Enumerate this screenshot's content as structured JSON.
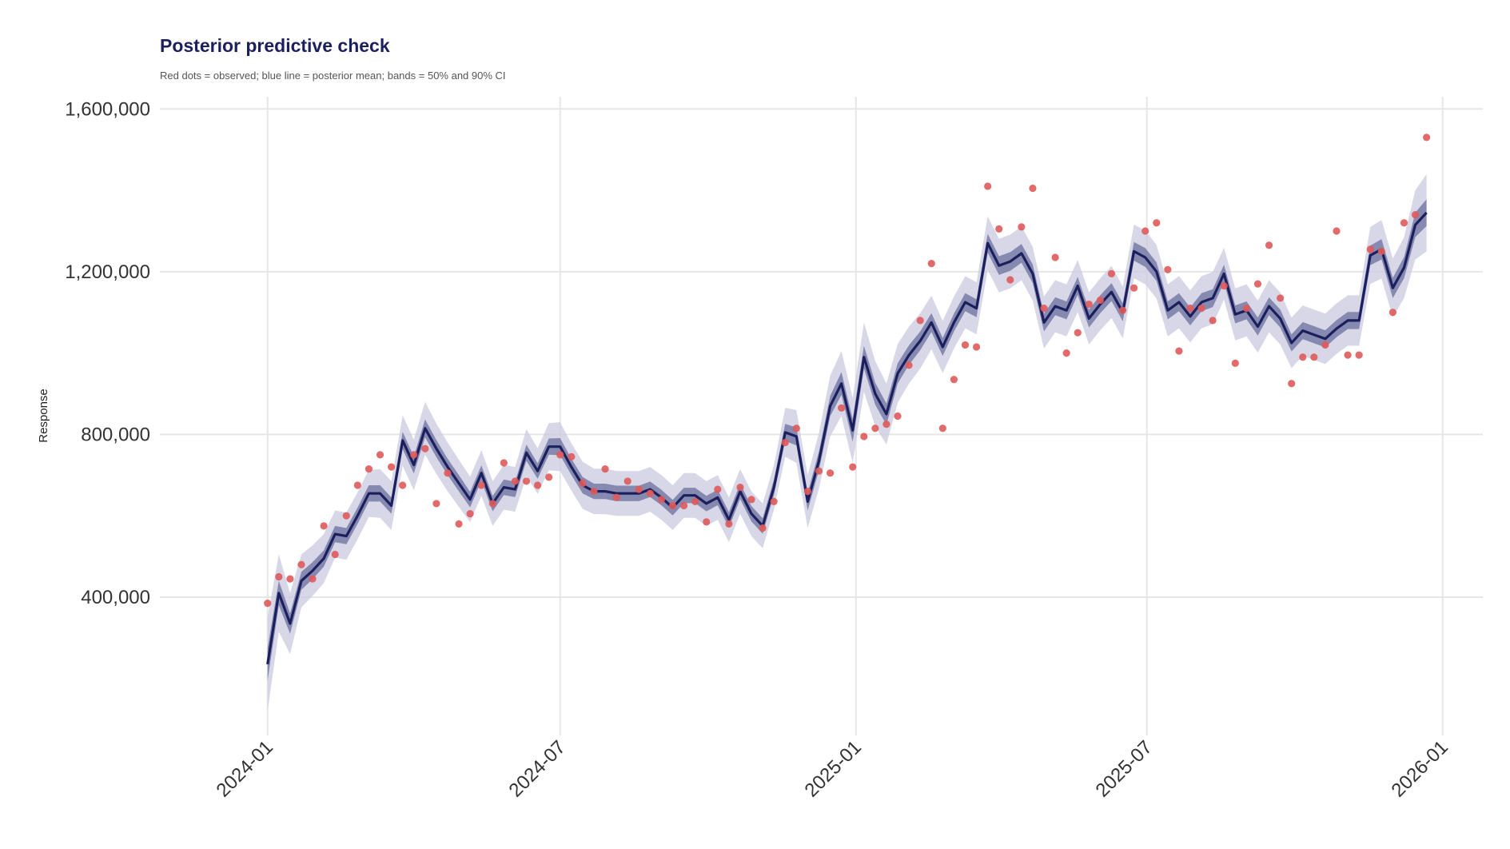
{
  "chart_data": {
    "type": "line",
    "title": "Posterior predictive check",
    "subtitle": "Red dots = observed; blue line = posterior mean; bands = 50% and 90% CI",
    "xlabel": "",
    "ylabel": "Response",
    "ylim": [
      60000,
      1630000
    ],
    "yticks": [
      400000,
      800000,
      1200000,
      1600000
    ],
    "ytick_labels": [
      "400,000",
      "800,000",
      "1,200,000",
      "1,600,000"
    ],
    "xticks": [
      "2024-01-01",
      "2024-07-01",
      "2025-01-01",
      "2025-07-01",
      "2026-01-01"
    ],
    "xtick_labels": [
      "2024-01",
      "2024-07",
      "2025-01",
      "2025-07",
      "2026-01"
    ],
    "xlim": [
      "2023-10-26",
      "2026-01-26"
    ],
    "grid": true,
    "colors": {
      "observed": "#e05a5a",
      "mean": "#1c1f5e",
      "band50": "#6b6f9e",
      "band90": "#c9cadf",
      "grid": "#e6e6e6"
    },
    "x_start": "2024-01-01",
    "x_step_days": 7,
    "series": [
      {
        "name": "posterior mean",
        "values": [
          235000,
          410000,
          335000,
          440000,
          465000,
          495000,
          555000,
          550000,
          600000,
          655000,
          655000,
          625000,
          785000,
          725000,
          815000,
          765000,
          720000,
          680000,
          640000,
          705000,
          630000,
          670000,
          665000,
          755000,
          710000,
          770000,
          770000,
          720000,
          675000,
          660000,
          660000,
          655000,
          655000,
          655000,
          665000,
          645000,
          620000,
          650000,
          650000,
          630000,
          645000,
          590000,
          660000,
          605000,
          575000,
          670000,
          805000,
          795000,
          635000,
          735000,
          870000,
          925000,
          810000,
          990000,
          900000,
          850000,
          950000,
          995000,
          1030000,
          1075000,
          1015000,
          1075000,
          1125000,
          1110000,
          1270000,
          1215000,
          1225000,
          1245000,
          1195000,
          1075000,
          1115000,
          1105000,
          1165000,
          1085000,
          1120000,
          1150000,
          1100000,
          1250000,
          1235000,
          1200000,
          1105000,
          1125000,
          1090000,
          1125000,
          1135000,
          1195000,
          1095000,
          1105000,
          1065000,
          1115000,
          1085000,
          1025000,
          1055000,
          1045000,
          1035000,
          1060000,
          1080000,
          1080000,
          1240000,
          1255000,
          1160000,
          1210000,
          1315000,
          1345000
        ]
      },
      {
        "name": "observed",
        "values": [
          385000,
          450000,
          445000,
          480000,
          445000,
          575000,
          505000,
          600000,
          675000,
          715000,
          750000,
          720000,
          675000,
          750000,
          765000,
          630000,
          705000,
          580000,
          605000,
          675000,
          630000,
          730000,
          685000,
          685000,
          675000,
          695000,
          750000,
          745000,
          680000,
          660000,
          715000,
          645000,
          685000,
          665000,
          655000,
          640000,
          625000,
          625000,
          635000,
          585000,
          665000,
          580000,
          670000,
          640000,
          570000,
          635000,
          780000,
          815000,
          660000,
          710000,
          705000,
          865000,
          720000,
          795000,
          815000,
          825000,
          845000,
          970000,
          1080000,
          1220000,
          815000,
          935000,
          1020000,
          1015000,
          1410000,
          1305000,
          1180000,
          1310000,
          1405000,
          1110000,
          1235000,
          1000000,
          1050000,
          1120000,
          1130000,
          1195000,
          1105000,
          1160000,
          1300000,
          1320000,
          1205000,
          1005000,
          1110000,
          1110000,
          1080000,
          1165000,
          975000,
          1110000,
          1170000,
          1265000,
          1135000,
          925000,
          990000,
          990000,
          1020000,
          1300000,
          995000,
          995000,
          1255000,
          1250000,
          1100000,
          1320000,
          1340000,
          1530000
        ]
      }
    ],
    "bands": {
      "ci90_halfwidth": [
        115000,
        95000,
        75000,
        65000,
        62000,
        60000,
        58000,
        58000,
        58000,
        58000,
        60000,
        60000,
        62000,
        62000,
        65000,
        62000,
        60000,
        58000,
        56000,
        56000,
        55000,
        55000,
        55000,
        58000,
        56000,
        58000,
        60000,
        58000,
        58000,
        56000,
        56000,
        55000,
        55000,
        55000,
        55000,
        55000,
        55000,
        55000,
        55000,
        55000,
        55000,
        55000,
        55000,
        55000,
        55000,
        55000,
        60000,
        65000,
        65000,
        68000,
        75000,
        80000,
        80000,
        85000,
        80000,
        75000,
        72000,
        70000,
        68000,
        66000,
        64000,
        64000,
        64000,
        64000,
        66000,
        66000,
        66000,
        66000,
        66000,
        64000,
        64000,
        64000,
        64000,
        64000,
        64000,
        64000,
        64000,
        66000,
        66000,
        66000,
        64000,
        64000,
        64000,
        64000,
        64000,
        64000,
        64000,
        64000,
        64000,
        64000,
        64000,
        62000,
        62000,
        62000,
        62000,
        62000,
        62000,
        62000,
        70000,
        72000,
        72000,
        75000,
        85000,
        95000
      ],
      "ci50_halfwidth": [
        40000,
        30000,
        25000,
        22000,
        21000,
        20000,
        20000,
        20000,
        20000,
        20000,
        20000,
        20000,
        21000,
        21000,
        22000,
        21000,
        20000,
        20000,
        19000,
        19000,
        19000,
        19000,
        19000,
        20000,
        19000,
        20000,
        21000,
        20000,
        20000,
        19000,
        19000,
        19000,
        19000,
        19000,
        19000,
        19000,
        19000,
        19000,
        19000,
        19000,
        19000,
        19000,
        19000,
        19000,
        19000,
        19000,
        21000,
        22000,
        22000,
        23000,
        25000,
        28000,
        28000,
        28000,
        27000,
        26000,
        25000,
        24000,
        23000,
        23000,
        22000,
        22000,
        22000,
        22000,
        23000,
        23000,
        23000,
        23000,
        23000,
        22000,
        22000,
        22000,
        22000,
        22000,
        22000,
        22000,
        22000,
        23000,
        23000,
        23000,
        22000,
        22000,
        22000,
        22000,
        22000,
        22000,
        22000,
        22000,
        22000,
        22000,
        22000,
        21000,
        21000,
        21000,
        21000,
        21000,
        21000,
        21000,
        24000,
        25000,
        25000,
        26000,
        30000,
        33000
      ]
    }
  }
}
